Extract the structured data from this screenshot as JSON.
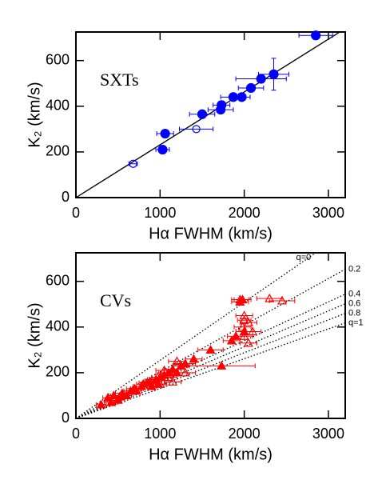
{
  "chart_data": [
    {
      "type": "scatter",
      "annotation": "SXTs",
      "xlabel": "Hα  FWHM (km/s)",
      "ylabel": "K₂ (km/s)",
      "xlim": [
        0,
        3200
      ],
      "ylim": [
        0,
        725
      ],
      "xticks": [
        0,
        1000,
        2000,
        3000
      ],
      "yticks": [
        0,
        200,
        400,
        600
      ],
      "series": [
        {
          "marker": "filled",
          "shape": "circle",
          "color": "#0000ff",
          "x": [
            2850,
            2350,
            2200,
            2080,
            1970,
            1870,
            1730,
            1720,
            1500,
            1060,
            1030
          ],
          "values": [
            710,
            540,
            520,
            480,
            440,
            440,
            405,
            385,
            365,
            280,
            210
          ],
          "xerr": [
            200,
            180,
            300,
            150,
            100,
            150,
            100,
            150,
            150,
            100,
            80
          ],
          "yerr": [
            0,
            70,
            0,
            0,
            0,
            0,
            0,
            0,
            0,
            0,
            0
          ]
        },
        {
          "marker": "open",
          "shape": "circle",
          "color": "#0000ff",
          "x": [
            1430,
            680
          ],
          "values": [
            300,
            148
          ],
          "xerr": [
            200,
            50
          ],
          "yerr": [
            0,
            0
          ]
        }
      ],
      "lines": [
        {
          "x": [
            0,
            3200
          ],
          "values": [
            0,
            740
          ],
          "color": "#000000",
          "style": "solid"
        }
      ]
    },
    {
      "type": "scatter",
      "annotation": "CVs",
      "xlabel": "Hα  FWHM (km/s)",
      "ylabel": "K₂ (km/s)",
      "xlim": [
        0,
        3200
      ],
      "ylim": [
        0,
        725
      ],
      "xticks": [
        0,
        1000,
        2000,
        3000
      ],
      "yticks": [
        0,
        200,
        400,
        600
      ],
      "series": [
        {
          "marker": "filled",
          "shape": "triangle",
          "color": "#ff0000",
          "x": [
            300,
            380,
            420,
            450,
            500,
            520,
            550,
            600,
            650,
            700,
            720,
            780,
            800,
            850,
            880,
            900,
            950,
            980,
            1000,
            1050,
            1100,
            1150,
            1200,
            1250,
            1300,
            1400,
            1600,
            1730,
            1850,
            1950,
            1980,
            2000,
            1900
          ],
          "values": [
            60,
            90,
            70,
            100,
            80,
            95,
            110,
            100,
            120,
            130,
            120,
            140,
            150,
            155,
            160,
            140,
            170,
            150,
            180,
            190,
            200,
            215,
            200,
            230,
            240,
            260,
            300,
            230,
            340,
            510,
            520,
            380,
            360
          ],
          "xerr": [
            60,
            60,
            80,
            60,
            80,
            60,
            80,
            60,
            80,
            100,
            60,
            100,
            80,
            100,
            80,
            60,
            100,
            80,
            100,
            100,
            120,
            100,
            120,
            100,
            120,
            100,
            150,
            400,
            100,
            100,
            100,
            100,
            100
          ],
          "yerr": [
            0,
            0,
            0,
            0,
            0,
            0,
            0,
            0,
            0,
            0,
            0,
            0,
            0,
            0,
            0,
            0,
            0,
            0,
            0,
            0,
            0,
            0,
            0,
            0,
            0,
            0,
            0,
            0,
            0,
            0,
            0,
            0,
            0
          ]
        },
        {
          "marker": "open",
          "shape": "triangle",
          "color": "#ff0000",
          "x": [
            1950,
            2000,
            2000,
            1980,
            2050,
            2100,
            2000,
            2300,
            2450,
            1300,
            1100,
            1150,
            900,
            1200,
            1000,
            1050,
            2050
          ],
          "values": [
            520,
            450,
            430,
            400,
            420,
            380,
            360,
            525,
            515,
            200,
            180,
            160,
            165,
            250,
            150,
            210,
            330
          ],
          "xerr": [
            100,
            100,
            80,
            100,
            100,
            100,
            100,
            150,
            150,
            120,
            100,
            100,
            80,
            100,
            80,
            100,
            100
          ],
          "yerr": [
            0,
            0,
            0,
            0,
            0,
            0,
            0,
            0,
            0,
            0,
            0,
            0,
            0,
            0,
            0,
            0,
            0
          ]
        }
      ],
      "lines": [
        {
          "x": [
            0,
            2850
          ],
          "values": [
            0,
            725
          ],
          "color": "#000000",
          "style": "dotted",
          "label": "q=0"
        },
        {
          "x": [
            0,
            3200
          ],
          "values": [
            0,
            653
          ],
          "color": "#000000",
          "style": "dotted",
          "label": "0.2"
        },
        {
          "x": [
            0,
            3200
          ],
          "values": [
            0,
            544
          ],
          "color": "#000000",
          "style": "dotted",
          "label": "0.4"
        },
        {
          "x": [
            0,
            3200
          ],
          "values": [
            0,
            502
          ],
          "color": "#000000",
          "style": "dotted",
          "label": "0.6"
        },
        {
          "x": [
            0,
            3200
          ],
          "values": [
            0,
            460
          ],
          "color": "#000000",
          "style": "dotted",
          "label": "0.8"
        },
        {
          "x": [
            0,
            3200
          ],
          "values": [
            0,
            418
          ],
          "color": "#000000",
          "style": "dotted",
          "label": "q=1"
        }
      ]
    }
  ]
}
